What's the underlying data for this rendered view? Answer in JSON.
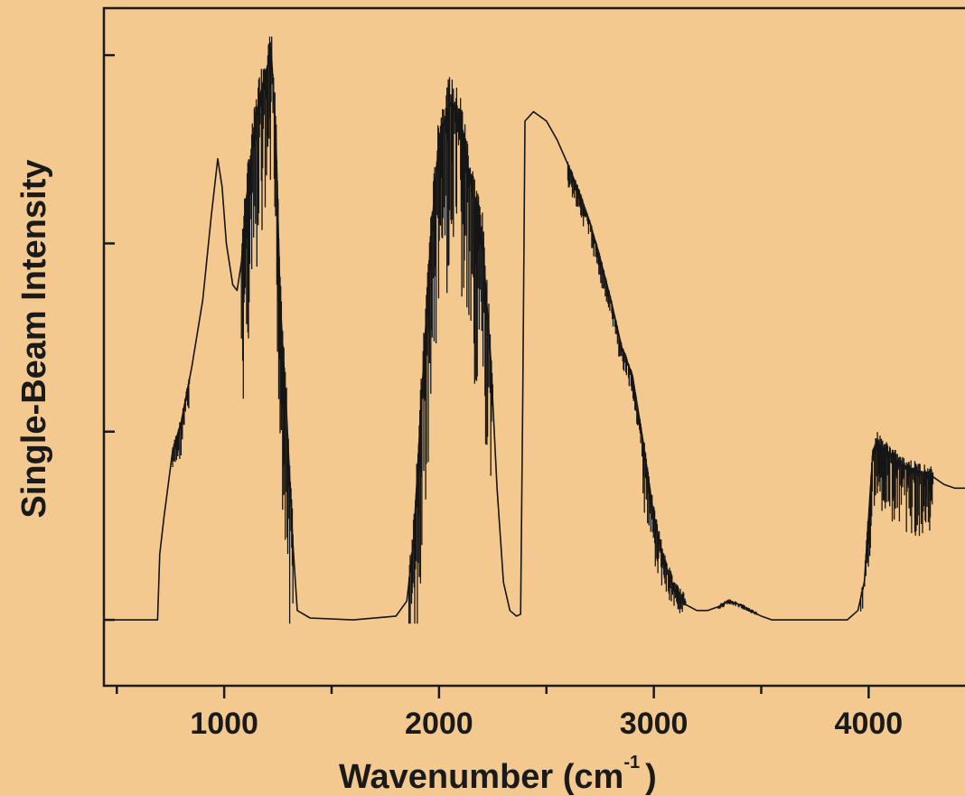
{
  "chart_data": {
    "type": "line",
    "title": "",
    "xlabel": "Wavenumber (cm",
    "xlabel_sup": "-1",
    "xlabel_close": ")",
    "ylabel": "Single-Beam Intensity",
    "xlim": [
      440,
      4520
    ],
    "ylim": [
      -0.35,
      3.25
    ],
    "x_ticks_major": [
      1000,
      2000,
      3000,
      4000
    ],
    "x_tick_labels": [
      "1000",
      "2000",
      "3000",
      "4000"
    ],
    "x_ticks_minor": [
      500,
      1500,
      2500,
      3500,
      4500
    ],
    "y_ticks": [
      1,
      2,
      3
    ],
    "y_tick_labels_shown": false,
    "grid": false,
    "series": [
      {
        "values_x": [
          440,
          690,
          700,
          720,
          760,
          800,
          850,
          900,
          940,
          970,
          990,
          1010,
          1040,
          1060,
          1080,
          1100,
          1130,
          1160,
          1190,
          1220,
          1240,
          1260,
          1290,
          1320,
          1340,
          1400,
          1600,
          1800,
          1850,
          1880,
          1920,
          1960,
          2000,
          2050,
          2100,
          2150,
          2200,
          2240,
          2270,
          2300,
          2330,
          2360,
          2380,
          2390,
          2400,
          2440,
          2500,
          2550,
          2600,
          2650,
          2700,
          2750,
          2800,
          2850,
          2900,
          2950,
          3000,
          3050,
          3100,
          3150,
          3200,
          3250,
          3300,
          3350,
          3400,
          3450,
          3500,
          3550,
          3600,
          3700,
          3800,
          3900,
          3950,
          3980,
          4000,
          4020,
          4040,
          4060,
          4080,
          4100,
          4150,
          4200,
          4250,
          4300,
          4350,
          4400,
          4450,
          4500,
          4520
        ],
        "values_y": [
          0.0,
          0.0,
          0.35,
          0.55,
          0.9,
          1.05,
          1.35,
          1.7,
          2.15,
          2.45,
          2.3,
          2.0,
          1.78,
          1.75,
          1.9,
          2.2,
          2.5,
          2.75,
          2.9,
          3.0,
          2.6,
          1.7,
          1.1,
          0.4,
          0.05,
          0.01,
          0.0,
          0.02,
          0.1,
          0.4,
          1.2,
          2.0,
          2.55,
          2.75,
          2.65,
          2.3,
          2.05,
          1.4,
          0.7,
          0.2,
          0.05,
          0.02,
          0.03,
          1.2,
          2.65,
          2.7,
          2.65,
          2.55,
          2.42,
          2.28,
          2.12,
          1.92,
          1.7,
          1.45,
          1.3,
          0.95,
          0.55,
          0.3,
          0.15,
          0.08,
          0.05,
          0.05,
          0.07,
          0.1,
          0.08,
          0.05,
          0.02,
          0.0,
          0.0,
          0.0,
          0.0,
          0.0,
          0.05,
          0.2,
          0.55,
          0.9,
          0.95,
          0.92,
          0.9,
          0.88,
          0.82,
          0.8,
          0.78,
          0.76,
          0.72,
          0.7,
          0.7,
          0.68,
          0.68
        ]
      }
    ],
    "noise_bands": [
      {
        "x0": 760,
        "x1": 840,
        "amp": 0.18
      },
      {
        "x0": 1080,
        "x1": 1320,
        "amp": 0.9
      },
      {
        "x0": 1860,
        "x1": 2250,
        "amp": 1.0
      },
      {
        "x0": 2600,
        "x1": 2950,
        "amp": 0.12
      },
      {
        "x0": 2950,
        "x1": 3150,
        "amp": 0.35
      },
      {
        "x0": 3300,
        "x1": 3480,
        "amp": 0.08
      },
      {
        "x0": 3960,
        "x1": 4300,
        "amp": 0.35
      }
    ]
  }
}
